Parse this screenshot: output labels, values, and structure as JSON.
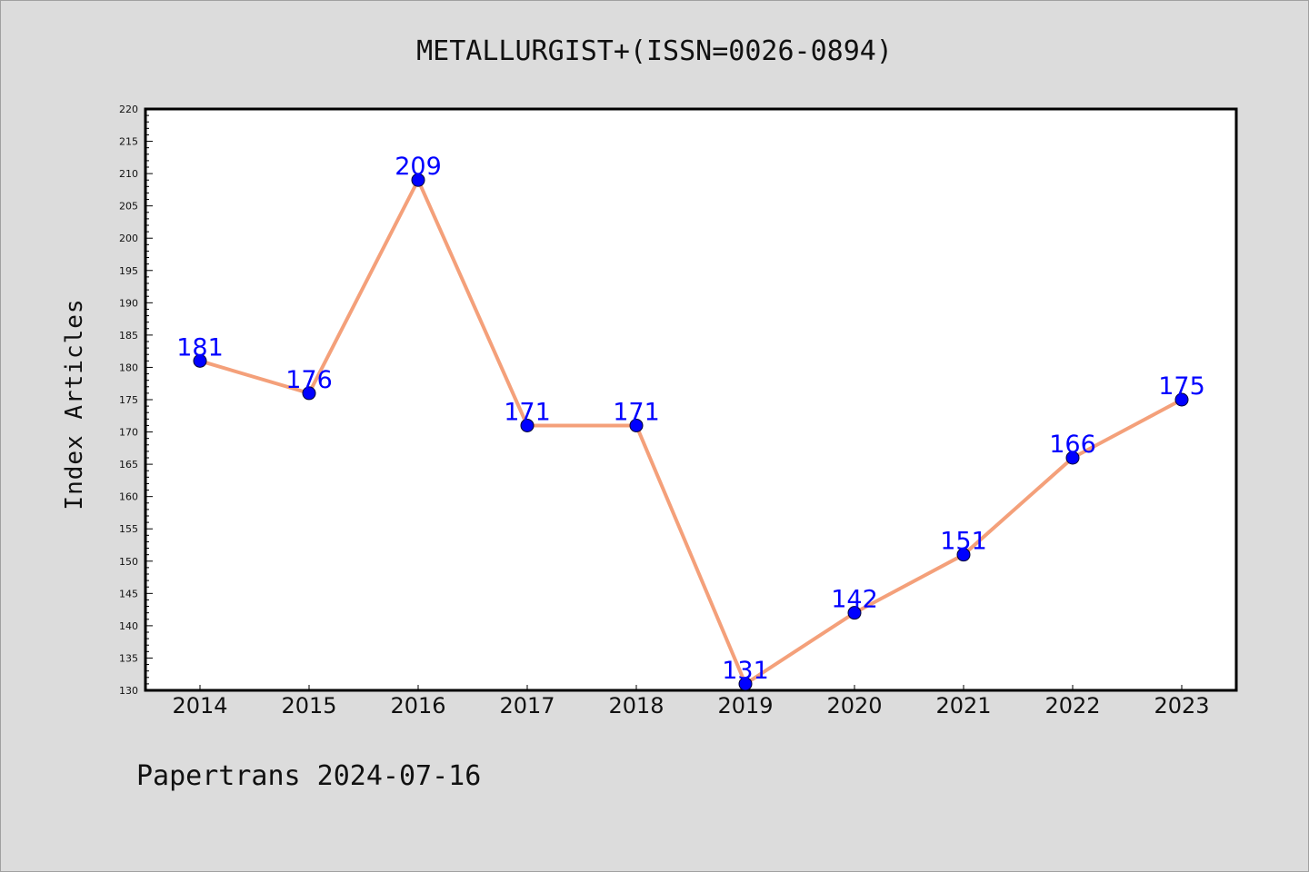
{
  "chart_data": {
    "type": "line",
    "title": "METALLURGIST+(ISSN=0026-0894)",
    "xlabel": "",
    "ylabel": "Index Articles",
    "categories": [
      "2014",
      "2015",
      "2016",
      "2017",
      "2018",
      "2019",
      "2020",
      "2021",
      "2022",
      "2023"
    ],
    "series": [
      {
        "values": [
          181,
          176,
          209,
          171,
          171,
          131,
          142,
          151,
          166,
          175
        ]
      }
    ],
    "data_labels": [
      "181",
      "176",
      "209",
      "171",
      "171",
      "131",
      "142",
      "151",
      "166",
      "175"
    ],
    "ylim": [
      130,
      220
    ],
    "yticks": [
      130,
      135,
      140,
      145,
      150,
      155,
      160,
      165,
      170,
      175,
      180,
      185,
      190,
      195,
      200,
      205,
      210,
      215,
      220
    ],
    "grid": false,
    "legend": "none",
    "colors": {
      "line": "#f4a07a",
      "marker": "#0000ff",
      "label": "#0000ff",
      "background": "#dcdcdc",
      "plot_area": "#ffffff"
    }
  },
  "footer": "Papertrans 2024-07-16"
}
